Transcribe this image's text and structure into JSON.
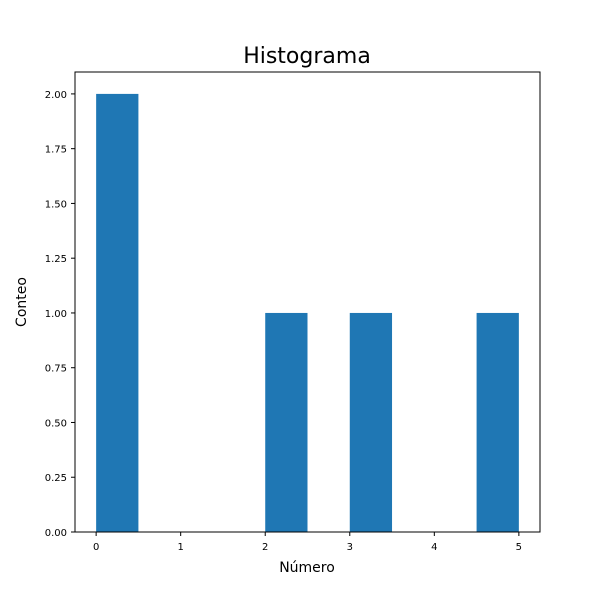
{
  "chart_data": {
    "type": "bar",
    "subtype": "histogram",
    "title": "Histograma",
    "xlabel": "Número",
    "ylabel": "Conteo",
    "bins": [
      {
        "start": 0.0,
        "end": 0.5,
        "count": 2
      },
      {
        "start": 0.5,
        "end": 1.0,
        "count": 0
      },
      {
        "start": 1.0,
        "end": 1.5,
        "count": 0
      },
      {
        "start": 1.5,
        "end": 2.0,
        "count": 0
      },
      {
        "start": 2.0,
        "end": 2.5,
        "count": 1
      },
      {
        "start": 2.5,
        "end": 3.0,
        "count": 0
      },
      {
        "start": 3.0,
        "end": 3.5,
        "count": 1
      },
      {
        "start": 3.5,
        "end": 4.0,
        "count": 0
      },
      {
        "start": 4.0,
        "end": 4.5,
        "count": 0
      },
      {
        "start": 4.5,
        "end": 5.0,
        "count": 1
      }
    ],
    "xlim": [
      -0.25,
      5.25
    ],
    "ylim": [
      0,
      2.1
    ],
    "xticks": [
      0,
      1,
      2,
      3,
      4,
      5
    ],
    "xtick_labels": [
      "0",
      "1",
      "2",
      "3",
      "4",
      "5"
    ],
    "yticks": [
      0,
      0.25,
      0.5,
      0.75,
      1.0,
      1.25,
      1.5,
      1.75,
      2.0
    ],
    "ytick_labels": [
      "0.00",
      "0.25",
      "0.50",
      "0.75",
      "1.00",
      "1.25",
      "1.50",
      "1.75",
      "2.00"
    ],
    "grid": false,
    "bar_color": "#1f77b4"
  }
}
